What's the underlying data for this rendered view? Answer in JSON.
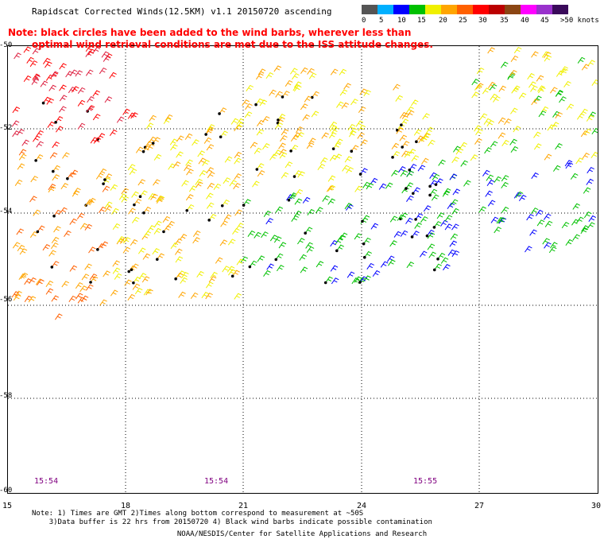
{
  "title": "Rapidscat Corrected Winds(12.5KM) v1.1 20150720 ascending",
  "note": {
    "line1": "Note: black circles have been added to the wind barbs, wherever less than",
    "line2": "optimal wind retrieval conditions are met due to the ISS attitude changes."
  },
  "colorbar": {
    "colors": [
      "#555555",
      "#00b0ff",
      "#0000ff",
      "#00c000",
      "#f0f000",
      "#ffa500",
      "#ff6000",
      "#ff0000",
      "#bb0000",
      "#8b4513",
      "#ff00ff",
      "#9932cc",
      "#3a0a5a"
    ],
    "labels": [
      "0",
      "5",
      "10",
      "15",
      "20",
      "25",
      "30",
      "35",
      "40",
      "45",
      ">50 knots"
    ]
  },
  "axes": {
    "x_ticks": [
      "15",
      "18",
      "21",
      "24",
      "27",
      "30"
    ],
    "y_ticks": [
      "-50",
      "-52",
      "-54",
      "-56",
      "-58",
      "-60"
    ]
  },
  "times": [
    "15:54",
    "15:54",
    "15:55"
  ],
  "footer": {
    "line1": "Note: 1) Times are GMT 2)Times along bottom correspond to measurement at ~50S",
    "line2": "3)Data buffer is 22 hrs from 20150720 4) Black wind barbs indicate possible contamination"
  },
  "credit": "NOAA/NESDIS/Center for Satellite Applications and Research"
}
